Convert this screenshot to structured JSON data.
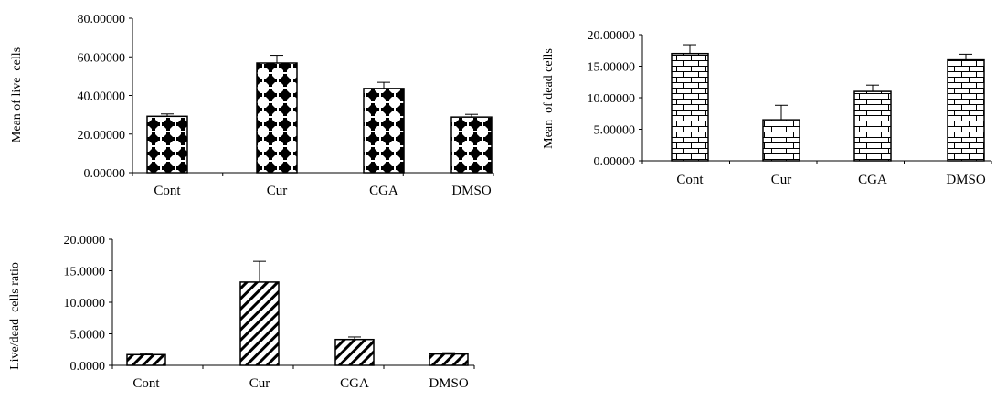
{
  "chart_data": [
    {
      "type": "bar",
      "categories": [
        "Cont",
        "Cur",
        "CGA",
        "DMSO"
      ],
      "values": [
        29.2,
        56.8,
        43.6,
        28.8
      ],
      "errors": [
        1.2,
        4.0,
        3.2,
        1.4
      ],
      "ylabel": "Mean of live  cells",
      "ylim": [
        0,
        80
      ],
      "ticks": [
        "0.00000",
        "20.00000",
        "40.00000",
        "60.00000",
        "80.00000"
      ],
      "pattern": "diamond-dots"
    },
    {
      "type": "bar",
      "categories": [
        "Cont",
        "Cur",
        "CGA",
        "DMSO"
      ],
      "values": [
        17.0,
        6.5,
        11.0,
        16.0
      ],
      "errors": [
        1.4,
        2.3,
        1.0,
        0.9
      ],
      "ylabel": "Mean  of dead cells",
      "ylim": [
        0,
        20
      ],
      "ticks": [
        "0.00000",
        "5.00000",
        "10.00000",
        "15.00000",
        "20.00000"
      ],
      "pattern": "brick"
    },
    {
      "type": "bar",
      "categories": [
        "Cont",
        "Cur",
        "CGA",
        "DMSO"
      ],
      "values": [
        1.7,
        13.2,
        4.1,
        1.8
      ],
      "errors": [
        0.2,
        3.3,
        0.4,
        0.2
      ],
      "ylabel": "Live/dead  cells ratio",
      "ylim": [
        0,
        20
      ],
      "ticks": [
        "0.0000",
        "5.0000",
        "10.0000",
        "15.0000",
        "20.0000"
      ],
      "pattern": "diagonal-stripes"
    }
  ]
}
